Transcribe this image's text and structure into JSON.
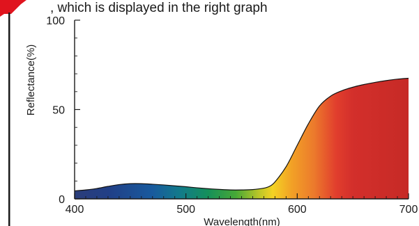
{
  "top_fragment": ", which is displayed in the right graph",
  "chart_data": {
    "type": "area",
    "title": "",
    "xlabel": "Wavelength(nm)",
    "ylabel": "Reflectance(%)",
    "xlim": [
      400,
      700
    ],
    "ylim": [
      0,
      100
    ],
    "x_ticks": [
      400,
      500,
      600,
      700
    ],
    "x_tick_labels": [
      "400",
      "500",
      "600",
      "700"
    ],
    "y_ticks": [
      0,
      50,
      100
    ],
    "y_tick_labels": [
      "0",
      "50",
      "100"
    ],
    "x_minor_step": 10,
    "y_minor_step": 10,
    "grid": false,
    "fill": "visible-spectrum gradient",
    "x": [
      400,
      410,
      420,
      430,
      440,
      450,
      460,
      470,
      480,
      490,
      500,
      510,
      520,
      530,
      540,
      550,
      560,
      570,
      575,
      580,
      590,
      600,
      610,
      620,
      630,
      640,
      650,
      660,
      670,
      680,
      690,
      700
    ],
    "y": [
      4.5,
      5.0,
      5.8,
      7.0,
      8.0,
      8.5,
      8.5,
      8.2,
      7.8,
      7.3,
      6.8,
      6.2,
      5.7,
      5.3,
      5.0,
      5.0,
      5.2,
      6.0,
      7.0,
      9.5,
      18,
      30,
      42,
      52,
      57.5,
      60.5,
      62.5,
      64,
      65.2,
      66.2,
      67,
      67.5
    ]
  },
  "colors": {
    "axis": "#1a1a1a",
    "curve": "#111111",
    "red_marker": "#e0141e",
    "spectrum_stops": [
      {
        "nm": 400,
        "color": "#2b3e7a"
      },
      {
        "nm": 430,
        "color": "#213f86"
      },
      {
        "nm": 470,
        "color": "#185a9e"
      },
      {
        "nm": 495,
        "color": "#127b8a"
      },
      {
        "nm": 520,
        "color": "#15905a"
      },
      {
        "nm": 545,
        "color": "#47a836"
      },
      {
        "nm": 565,
        "color": "#b8c628"
      },
      {
        "nm": 578,
        "color": "#f4d224"
      },
      {
        "nm": 595,
        "color": "#f2a126"
      },
      {
        "nm": 615,
        "color": "#ec7a2c"
      },
      {
        "nm": 635,
        "color": "#e13e2d"
      },
      {
        "nm": 650,
        "color": "#d32f2b"
      },
      {
        "nm": 700,
        "color": "#c62a26"
      }
    ]
  }
}
